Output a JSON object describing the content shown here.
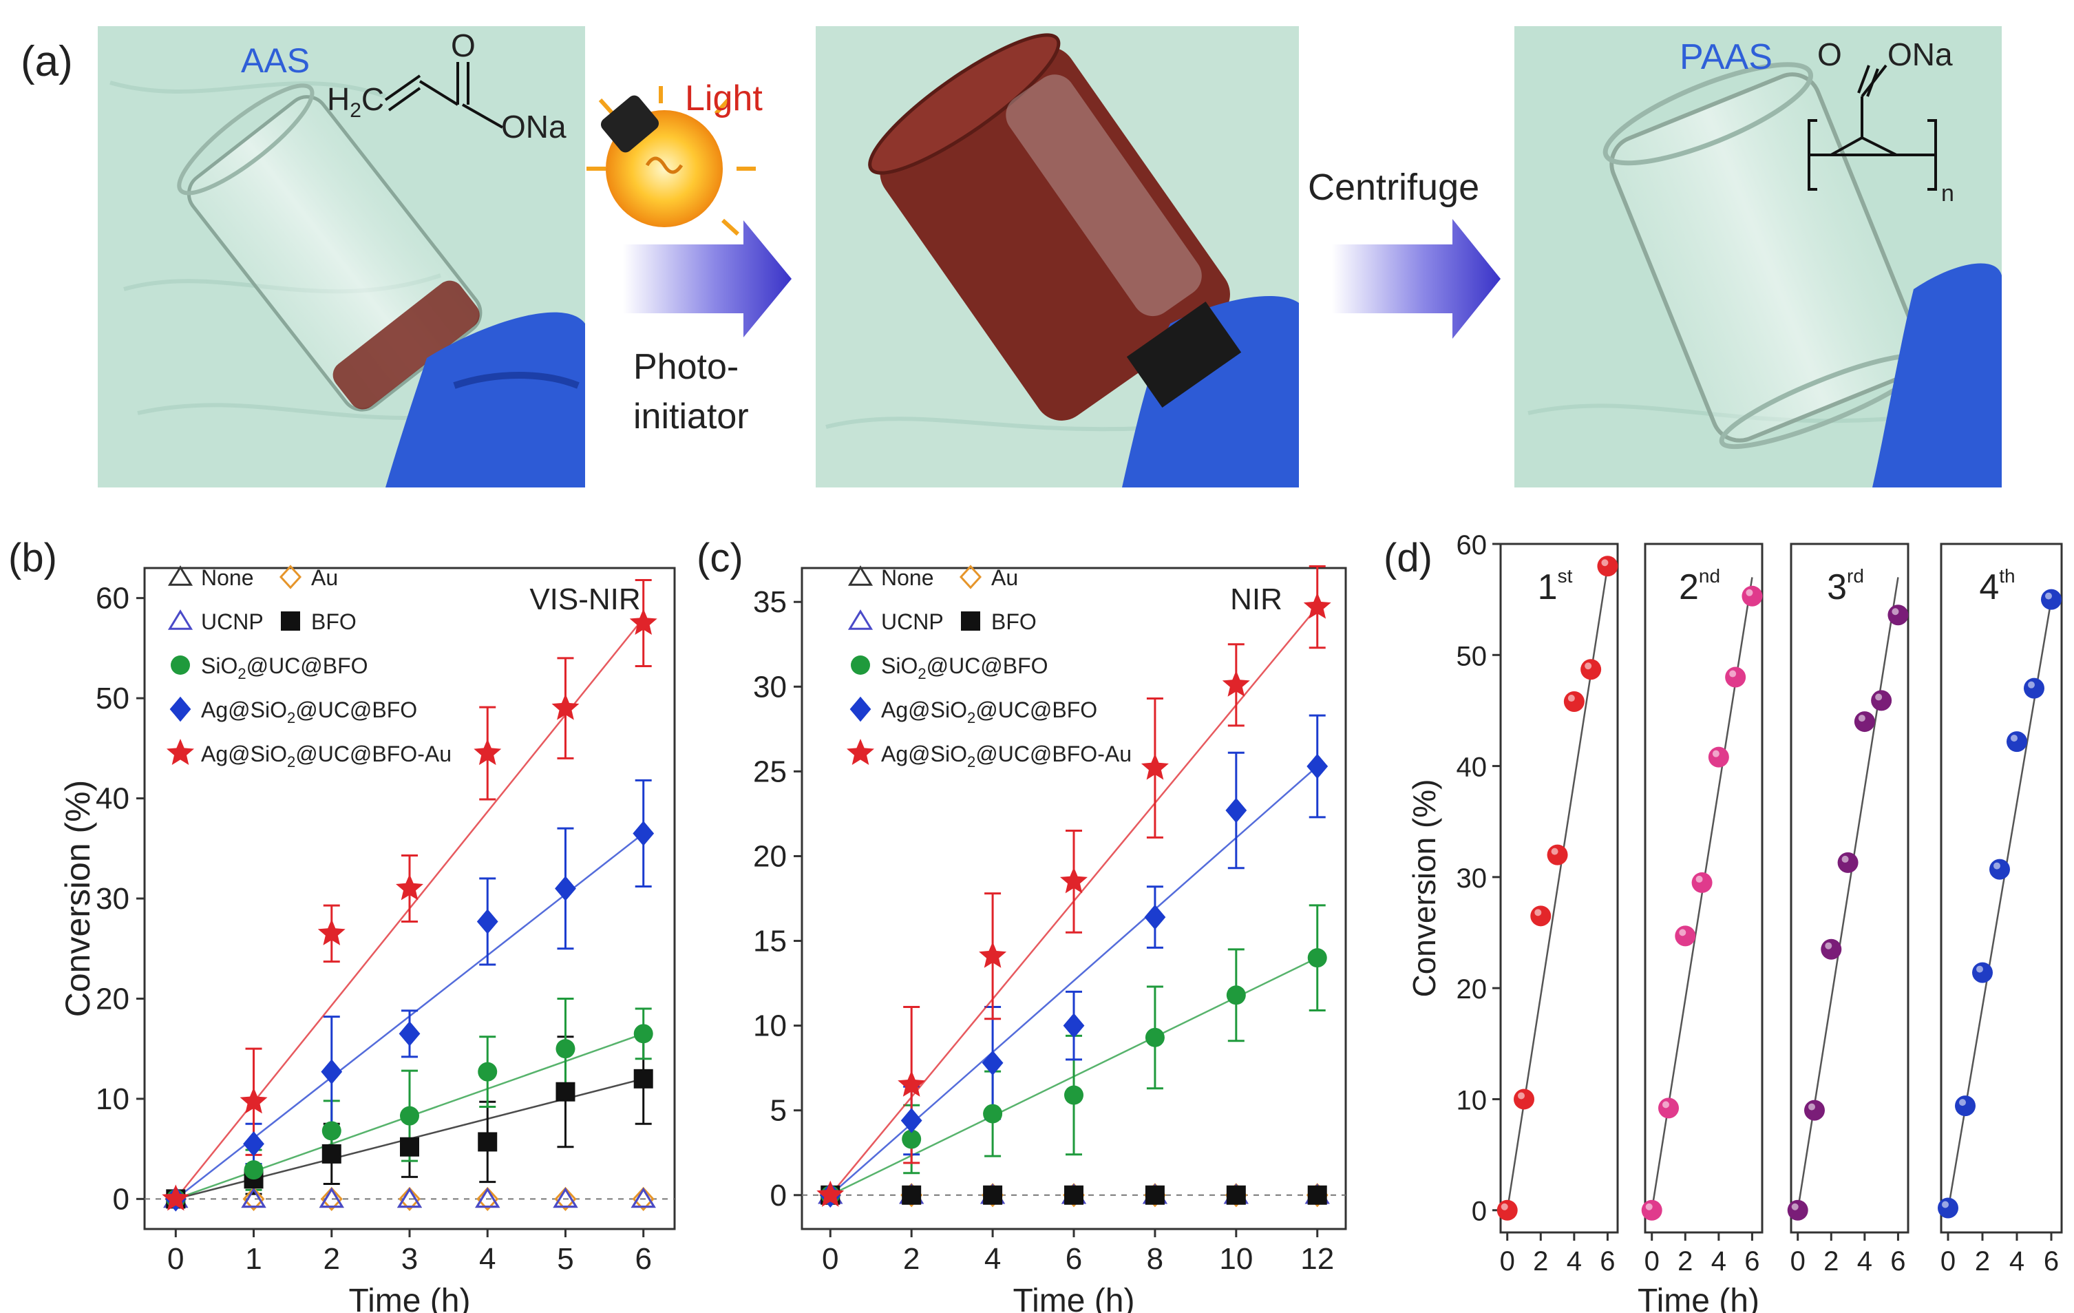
{
  "panel_a": {
    "label": "(a)",
    "photo1_label": "AAS",
    "photo1_formula": {
      "main": "H2C",
      "sub": "2",
      "ch": "H",
      "o_top": "O",
      "ona": "ONa"
    },
    "light_label": "Light",
    "arrow1_label_lines": [
      "Photo-",
      "initiator"
    ],
    "arrow2_label": "Centrifuge",
    "photo3_label": "PAAS",
    "photo3_formula": {
      "o_top": "O",
      "ona": "ONa",
      "n": "n"
    },
    "colors": {
      "photo_bg": "#bfe0d2",
      "liquid": "#7a2a22",
      "glove": "#2d5bd6",
      "arrow": "#3a34c8",
      "label_blue": "#2f5fd8",
      "light_red": "#d6281f"
    }
  },
  "chart_data": [
    {
      "panel": "(b)",
      "type": "scatter",
      "title": "VIS-NIR",
      "xlabel": "Time (h)",
      "ylabel": "Conversion (%)",
      "xlim": [
        -0.4,
        6.4
      ],
      "ylim": [
        -3,
        63
      ],
      "xticks": [
        0,
        1,
        2,
        3,
        4,
        5,
        6
      ],
      "yticks": [
        0,
        10,
        20,
        30,
        40,
        50,
        60
      ],
      "baseline_dashed": true,
      "series": [
        {
          "name": "None",
          "marker": "triangle-open",
          "color": "#333333",
          "x": [
            0,
            1,
            2,
            3,
            4,
            5,
            6
          ],
          "y": [
            0,
            0,
            0,
            0,
            0,
            0,
            0
          ]
        },
        {
          "name": "Au",
          "marker": "diamond-open",
          "color": "#e6952a",
          "x": [
            0,
            1,
            2,
            3,
            4,
            5,
            6
          ],
          "y": [
            0,
            0,
            0,
            0,
            0,
            0,
            0
          ]
        },
        {
          "name": "UCNP",
          "marker": "triangle-open",
          "color": "#4a4ac8",
          "x": [
            0,
            1,
            2,
            3,
            4,
            5,
            6
          ],
          "y": [
            0,
            0,
            0,
            0,
            0,
            0,
            0
          ]
        },
        {
          "name": "BFO",
          "marker": "square",
          "color": "#111111",
          "x": [
            0,
            1,
            2,
            3,
            4,
            5,
            6
          ],
          "y": [
            0,
            2,
            4.5,
            5.2,
            5.7,
            10.7,
            12
          ],
          "err": [
            0,
            1.5,
            3,
            3,
            4,
            5.5,
            4.5
          ],
          "fit": [
            0,
            12
          ]
        },
        {
          "name": "SiO2@UC@BFO",
          "marker": "circle",
          "color": "#1f9a3c",
          "x": [
            0,
            1,
            2,
            3,
            4,
            5,
            6
          ],
          "y": [
            0,
            2.9,
            6.8,
            8.3,
            12.7,
            15,
            16.5
          ],
          "err": [
            0,
            2,
            3,
            4.5,
            3.5,
            5,
            2.5
          ],
          "fit": [
            0,
            16.5
          ]
        },
        {
          "name": "Ag@SiO2@UC@BFO",
          "marker": "diamond",
          "color": "#1b3ccf",
          "x": [
            0,
            1,
            2,
            3,
            4,
            5,
            6
          ],
          "y": [
            0,
            5.5,
            12.7,
            16.5,
            27.7,
            31,
            36.5
          ],
          "err": [
            0,
            2,
            5.5,
            2.3,
            4.3,
            6,
            5.3
          ],
          "fit": [
            0,
            36.5
          ]
        },
        {
          "name": "Ag@SiO2@UC@BFO-Au",
          "marker": "star",
          "color": "#e0242a",
          "x": [
            0,
            1,
            2,
            3,
            4,
            5,
            6
          ],
          "y": [
            0,
            9.7,
            26.5,
            31,
            44.5,
            49,
            57.5
          ],
          "err": [
            0,
            5.3,
            2.8,
            3.3,
            4.6,
            5,
            4.3
          ],
          "fit": [
            0,
            58
          ]
        }
      ],
      "legend": [
        "None",
        "Au",
        "UCNP",
        "BFO",
        "SiO2@UC@BFO",
        "Ag@SiO2@UC@BFO",
        "Ag@SiO2@UC@BFO-Au"
      ]
    },
    {
      "panel": "(c)",
      "type": "scatter",
      "title": "NIR",
      "xlabel": "Time (h)",
      "ylabel": "",
      "xlim": [
        -0.7,
        12.7
      ],
      "ylim": [
        -2,
        37
      ],
      "xticks": [
        0,
        2,
        4,
        6,
        8,
        10,
        12
      ],
      "yticks": [
        0,
        5,
        10,
        15,
        20,
        25,
        30,
        35
      ],
      "baseline_dashed": true,
      "series": [
        {
          "name": "None",
          "marker": "triangle-open",
          "color": "#333333",
          "x": [
            0,
            2,
            4,
            6,
            8,
            10,
            12
          ],
          "y": [
            0,
            0,
            0,
            0,
            0,
            0,
            0
          ]
        },
        {
          "name": "Au",
          "marker": "diamond-open",
          "color": "#e6952a",
          "x": [
            0,
            2,
            4,
            6,
            8,
            10,
            12
          ],
          "y": [
            0,
            0,
            0,
            0,
            0,
            0,
            0
          ]
        },
        {
          "name": "UCNP",
          "marker": "triangle-open",
          "color": "#4a4ac8",
          "x": [
            0,
            2,
            4,
            6,
            8,
            10,
            12
          ],
          "y": [
            0,
            0,
            0,
            0,
            0,
            0,
            0
          ]
        },
        {
          "name": "BFO",
          "marker": "square",
          "color": "#111111",
          "x": [
            0,
            2,
            4,
            6,
            8,
            10,
            12
          ],
          "y": [
            0,
            0,
            0,
            0,
            0,
            0,
            0
          ]
        },
        {
          "name": "SiO2@UC@BFO",
          "marker": "circle",
          "color": "#1f9a3c",
          "x": [
            0,
            2,
            4,
            6,
            8,
            10,
            12
          ],
          "y": [
            0,
            3.3,
            4.8,
            5.9,
            9.3,
            11.8,
            14
          ],
          "err": [
            0,
            2,
            2.5,
            3.5,
            3,
            2.7,
            3.1
          ],
          "fit": [
            0,
            14
          ]
        },
        {
          "name": "Ag@SiO2@UC@BFO",
          "marker": "diamond",
          "color": "#1b3ccf",
          "x": [
            0,
            2,
            4,
            6,
            8,
            10,
            12
          ],
          "y": [
            0,
            4.4,
            7.8,
            10,
            16.4,
            22.7,
            25.3
          ],
          "err": [
            0,
            2,
            3.3,
            2,
            1.8,
            3.4,
            3
          ],
          "fit": [
            0,
            25.3
          ]
        },
        {
          "name": "Ag@SiO2@UC@BFO-Au",
          "marker": "star",
          "color": "#e0242a",
          "x": [
            0,
            2,
            4,
            6,
            8,
            10,
            12
          ],
          "y": [
            0,
            6.5,
            14.1,
            18.5,
            25.2,
            30.1,
            34.7
          ],
          "err": [
            0,
            4.6,
            3.7,
            3,
            4.1,
            2.4,
            2.4
          ],
          "fit": [
            0,
            34.7
          ]
        }
      ],
      "legend": [
        "None",
        "Au",
        "UCNP",
        "BFO",
        "SiO2@UC@BFO",
        "Ag@SiO2@UC@BFO",
        "Ag@SiO2@UC@BFO-Au"
      ]
    },
    {
      "panel": "(d)",
      "type": "scatter",
      "title": "",
      "xlabel": "Time (h)",
      "ylabel": "Conversion (%)",
      "xlim": [
        -0.4,
        6.6
      ],
      "ylim": [
        -2,
        60
      ],
      "xticks": [
        0,
        2,
        4,
        6
      ],
      "yticks": [
        0,
        10,
        20,
        30,
        40,
        50,
        60
      ],
      "subpanels": [
        {
          "label": "1",
          "sup": "st",
          "color": "#e3262a",
          "x": [
            0,
            1,
            2,
            3,
            4,
            5,
            6
          ],
          "y": [
            0,
            10,
            26.5,
            32,
            45.8,
            48.7,
            58
          ],
          "fit": [
            0,
            58
          ]
        },
        {
          "label": "2",
          "sup": "nd",
          "color": "#e03a8c",
          "x": [
            0,
            1,
            2,
            3,
            4,
            5,
            6
          ],
          "y": [
            0,
            9.2,
            24.7,
            29.5,
            40.8,
            48,
            55.3
          ],
          "fit": [
            0,
            57
          ]
        },
        {
          "label": "3",
          "sup": "rd",
          "color": "#7a1d78",
          "x": [
            0,
            1,
            2,
            3,
            4,
            5,
            6
          ],
          "y": [
            0,
            9,
            23.5,
            31.3,
            44,
            45.9,
            53.6
          ],
          "fit": [
            0,
            57
          ]
        },
        {
          "label": "4",
          "sup": "th",
          "color": "#1f3cc4",
          "x": [
            0,
            1,
            2,
            3,
            4,
            5,
            6
          ],
          "y": [
            0.2,
            9.4,
            21.4,
            30.7,
            42.2,
            47,
            55
          ],
          "fit": [
            0,
            55
          ]
        }
      ]
    }
  ]
}
